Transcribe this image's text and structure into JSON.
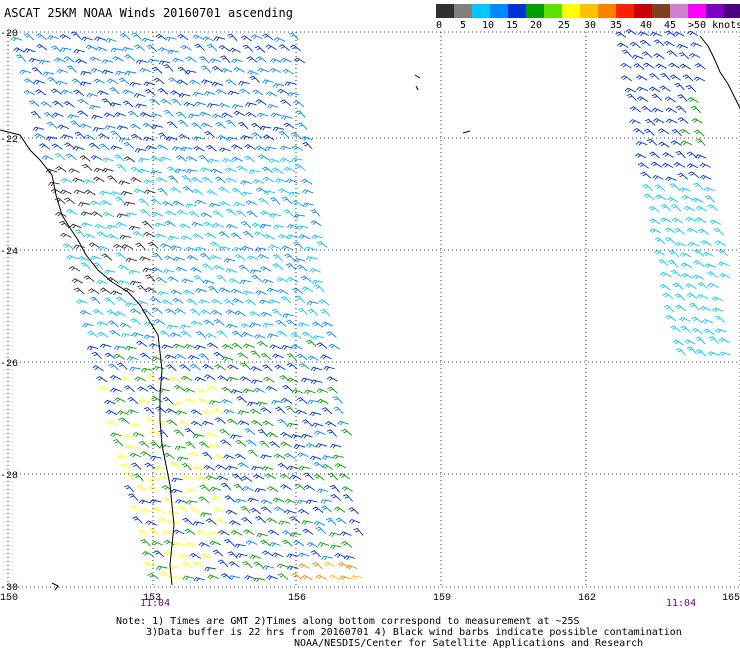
{
  "title": "ASCAT 25KM NOAA Winds 20160701 ascending",
  "legend": {
    "colors": [
      "#303030",
      "#808080",
      "#00c8ff",
      "#0088ff",
      "#0030d8",
      "#00a000",
      "#60e000",
      "#ffff00",
      "#ffc000",
      "#ff8000",
      "#ff2000",
      "#c80000",
      "#804020",
      "#d080d0",
      "#ff00ff",
      "#8000c0",
      "#4b0082"
    ],
    "labels": [
      "0",
      "5",
      "10",
      "15",
      "20",
      "25",
      "30",
      "35",
      "40",
      "45",
      ">50 knots"
    ]
  },
  "axes": {
    "x_ticks": [
      "150",
      "153",
      "156",
      "159",
      "162",
      "165"
    ],
    "y_ticks": [
      "-20",
      "-22",
      "-24",
      "-26",
      "-28",
      "-30"
    ]
  },
  "times": [
    "11:04",
    "11:04"
  ],
  "note": {
    "line1": "Note: 1) Times are GMT 2)Times along bottom correspond to measurement at ~25S",
    "line2": "3)Data buffer is 22 hrs from 20160701 4) Black wind barbs indicate possible contamination",
    "line3": "NOAA/NESDIS/Center for Satellite Applications and Research"
  }
}
